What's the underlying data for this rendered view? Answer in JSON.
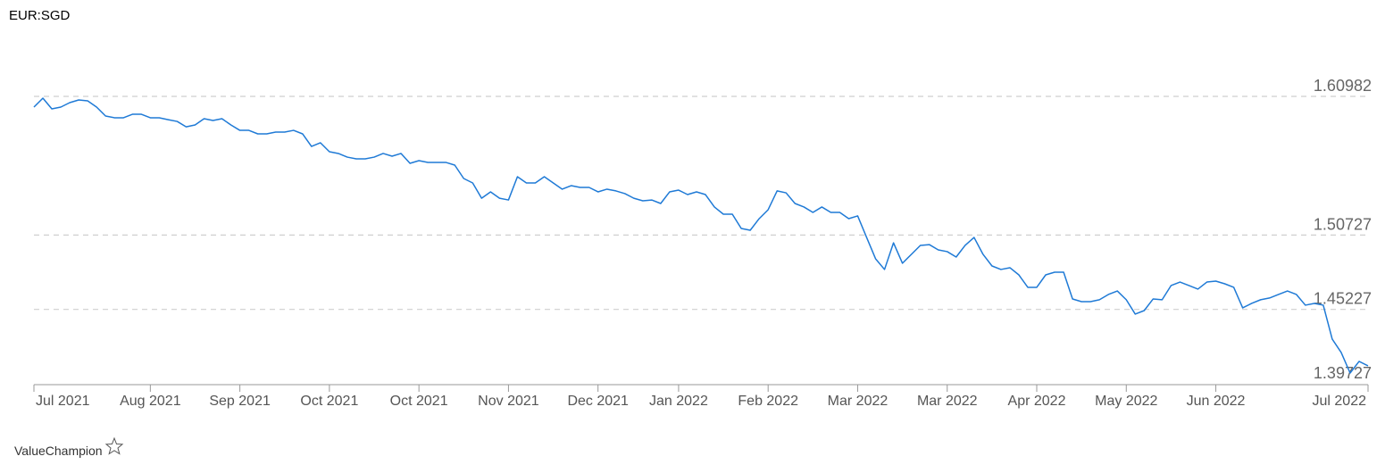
{
  "chart_data": {
    "type": "line",
    "title": "EUR:SGD",
    "footer": "ValueChampion",
    "categories": [
      "Jul 2021",
      null,
      null,
      null,
      null,
      null,
      null,
      null,
      null,
      null,
      null,
      null,
      null,
      "Aug 2021",
      null,
      null,
      null,
      null,
      null,
      null,
      null,
      null,
      null,
      "Sep 2021",
      null,
      null,
      null,
      null,
      null,
      null,
      null,
      null,
      null,
      "Oct 2021",
      null,
      null,
      null,
      null,
      null,
      null,
      null,
      null,
      null,
      "Oct 2021",
      null,
      null,
      null,
      null,
      null,
      null,
      null,
      null,
      null,
      "Nov 2021",
      null,
      null,
      null,
      null,
      null,
      null,
      null,
      null,
      null,
      "Dec 2021",
      null,
      null,
      null,
      null,
      null,
      null,
      null,
      null,
      "Jan 2022",
      null,
      null,
      null,
      null,
      null,
      null,
      null,
      null,
      null,
      "Feb 2022",
      null,
      null,
      null,
      null,
      null,
      null,
      null,
      null,
      null,
      "Mar 2022",
      null,
      null,
      null,
      null,
      null,
      null,
      null,
      null,
      null,
      "Mar 2022",
      null,
      null,
      null,
      null,
      null,
      null,
      null,
      null,
      null,
      "Apr 2022",
      null,
      null,
      null,
      null,
      null,
      null,
      null,
      null,
      null,
      "May 2022",
      null,
      null,
      null,
      null,
      null,
      null,
      null,
      null,
      null,
      "Jun 2022",
      null,
      null,
      null,
      null,
      null,
      null,
      null,
      null,
      null,
      null,
      null,
      null,
      null,
      null,
      null,
      null,
      "Jul 2022"
    ],
    "series": [
      {
        "name": "EUR:SGD",
        "color": "#1f7ad6",
        "values": [
          1.6019,
          1.6085,
          1.6006,
          1.6019,
          1.6052,
          1.6072,
          1.6065,
          1.6019,
          1.5953,
          1.594,
          1.594,
          1.5966,
          1.5966,
          1.594,
          1.594,
          1.5926,
          1.5913,
          1.5873,
          1.5887,
          1.5933,
          1.592,
          1.5933,
          1.5887,
          1.5847,
          1.5847,
          1.5821,
          1.5821,
          1.5834,
          1.5834,
          1.5847,
          1.5821,
          1.5728,
          1.5755,
          1.5689,
          1.5676,
          1.5649,
          1.5636,
          1.5636,
          1.5649,
          1.5676,
          1.5656,
          1.5676,
          1.5603,
          1.5623,
          1.561,
          1.561,
          1.561,
          1.559,
          1.5491,
          1.5458,
          1.5345,
          1.5392,
          1.5345,
          1.5332,
          1.5504,
          1.5458,
          1.5458,
          1.5504,
          1.5458,
          1.5412,
          1.5438,
          1.5425,
          1.5425,
          1.5392,
          1.5412,
          1.5399,
          1.5379,
          1.5345,
          1.5326,
          1.5332,
          1.5306,
          1.5392,
          1.5405,
          1.5372,
          1.5392,
          1.5372,
          1.528,
          1.5227,
          1.5227,
          1.5121,
          1.5108,
          1.5194,
          1.526,
          1.5399,
          1.5385,
          1.5306,
          1.528,
          1.524,
          1.528,
          1.524,
          1.524,
          1.5194,
          1.5214,
          1.5055,
          1.4897,
          1.4818,
          1.5015,
          1.4864,
          1.493,
          1.4996,
          1.5002,
          1.4963,
          1.495,
          1.491,
          1.4996,
          1.5055,
          1.493,
          1.4844,
          1.4818,
          1.4831,
          1.4778,
          1.4686,
          1.4686,
          1.4778,
          1.4798,
          1.4798,
          1.46,
          1.458,
          1.458,
          1.4594,
          1.4633,
          1.4659,
          1.4594,
          1.4488,
          1.4514,
          1.46,
          1.4594,
          1.4699,
          1.4725,
          1.4699,
          1.4673,
          1.4725,
          1.4732,
          1.4712,
          1.4686,
          1.4534,
          1.4567,
          1.4594,
          1.4607,
          1.4633,
          1.4659,
          1.4633,
          1.4554,
          1.4567,
          1.4554,
          1.4303,
          1.4204,
          1.4052,
          1.4138,
          1.4105
        ]
      }
    ],
    "ylim": [
      1.39727,
      1.60982
    ],
    "yticks": [
      1.39727,
      1.45227,
      1.50727,
      1.60982
    ],
    "grid": true
  }
}
